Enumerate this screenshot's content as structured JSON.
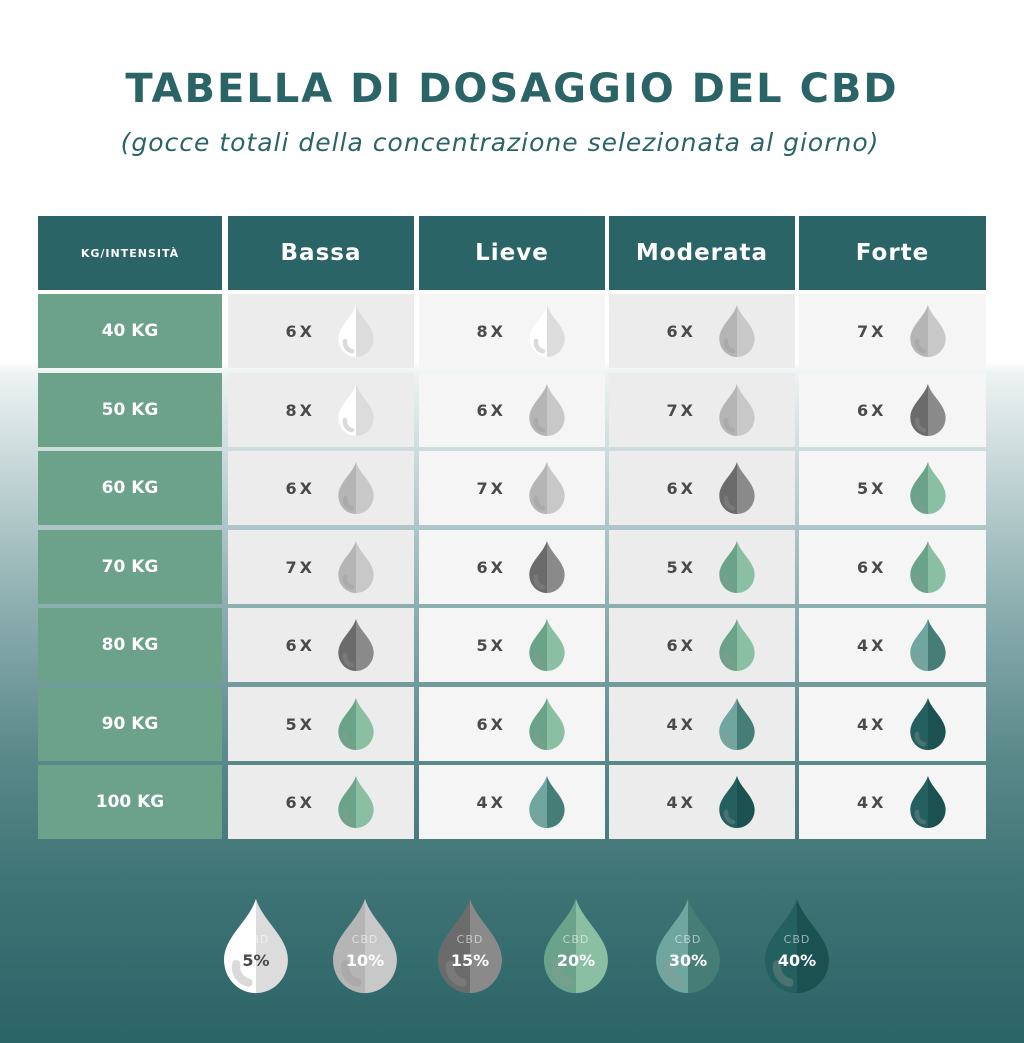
{
  "title": "TABELLA DI DOSAGGIO DEL CBD",
  "subtitle": "(gocce totali della concentrazione selezionata al giorno)",
  "table": {
    "corner": "KG/INTENSITÀ",
    "columns": [
      "Bassa",
      "Lieve",
      "Moderata",
      "Forte"
    ],
    "rows": [
      {
        "label": "40 KG",
        "cells": [
          {
            "count": "6X",
            "cbd": "5%"
          },
          {
            "count": "8X",
            "cbd": "5%"
          },
          {
            "count": "6X",
            "cbd": "10%"
          },
          {
            "count": "7X",
            "cbd": "10%"
          }
        ]
      },
      {
        "label": "50 KG",
        "cells": [
          {
            "count": "8X",
            "cbd": "5%"
          },
          {
            "count": "6X",
            "cbd": "10%"
          },
          {
            "count": "7X",
            "cbd": "10%"
          },
          {
            "count": "6X",
            "cbd": "15%"
          }
        ]
      },
      {
        "label": "60 KG",
        "cells": [
          {
            "count": "6X",
            "cbd": "10%"
          },
          {
            "count": "7X",
            "cbd": "10%"
          },
          {
            "count": "6X",
            "cbd": "15%"
          },
          {
            "count": "5X",
            "cbd": "20%"
          }
        ]
      },
      {
        "label": "70 KG",
        "cells": [
          {
            "count": "7X",
            "cbd": "10%"
          },
          {
            "count": "6X",
            "cbd": "15%"
          },
          {
            "count": "5X",
            "cbd": "20%"
          },
          {
            "count": "6X",
            "cbd": "20%"
          }
        ]
      },
      {
        "label": "80 KG",
        "cells": [
          {
            "count": "6X",
            "cbd": "15%"
          },
          {
            "count": "5X",
            "cbd": "20%"
          },
          {
            "count": "6X",
            "cbd": "20%"
          },
          {
            "count": "4X",
            "cbd": "30%"
          }
        ]
      },
      {
        "label": "90 KG",
        "cells": [
          {
            "count": "5X",
            "cbd": "20%"
          },
          {
            "count": "6X",
            "cbd": "20%"
          },
          {
            "count": "4X",
            "cbd": "30%"
          },
          {
            "count": "4X",
            "cbd": "40%"
          }
        ]
      },
      {
        "label": "100 KG",
        "cells": [
          {
            "count": "6X",
            "cbd": "20%"
          },
          {
            "count": "4X",
            "cbd": "30%"
          },
          {
            "count": "4X",
            "cbd": "40%"
          },
          {
            "count": "4X",
            "cbd": "40%"
          }
        ]
      }
    ]
  },
  "legend": [
    {
      "label": "CBD",
      "value": "5%",
      "left": "#ffffff",
      "right": "#dcdcdc",
      "text": "#4a4a4a"
    },
    {
      "label": "CBD",
      "value": "10%",
      "left": "#b5b5b5",
      "right": "#c8c8c8",
      "text": "#ffffff"
    },
    {
      "label": "CBD",
      "value": "15%",
      "left": "#6b6b6b",
      "right": "#8a8a8a",
      "text": "#ffffff"
    },
    {
      "label": "CBD",
      "value": "20%",
      "left": "#6ba38a",
      "right": "#8abfa4",
      "text": "#ffffff"
    },
    {
      "label": "CBD",
      "value": "30%",
      "left": "#6fa7a0",
      "right": "#467e77",
      "text": "#ffffff"
    },
    {
      "label": "CBD",
      "value": "40%",
      "left": "#24605f",
      "right": "#1c5152",
      "text": "#ffffff"
    }
  ],
  "colors": {
    "header": "#2a6467",
    "row_label": "#6ca18a"
  }
}
